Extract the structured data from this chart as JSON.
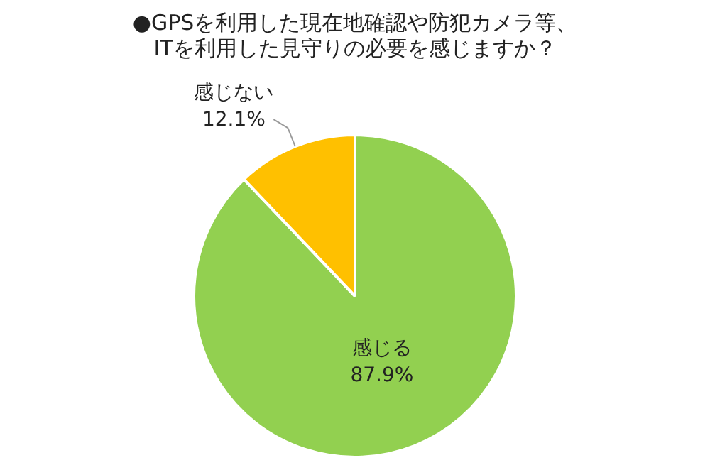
{
  "chart_data": {
    "type": "pie",
    "title": "●GPSを利用した現在地確認や防犯カメラ等、\nITを利用した見守りの必要を感じますか？",
    "categories": [
      "感じる",
      "感じない"
    ],
    "values": [
      87.9,
      12.1
    ],
    "colors": [
      "#92d050",
      "#ffc000"
    ],
    "value_labels": [
      "87.9%",
      "12.1%"
    ],
    "legend": false
  }
}
